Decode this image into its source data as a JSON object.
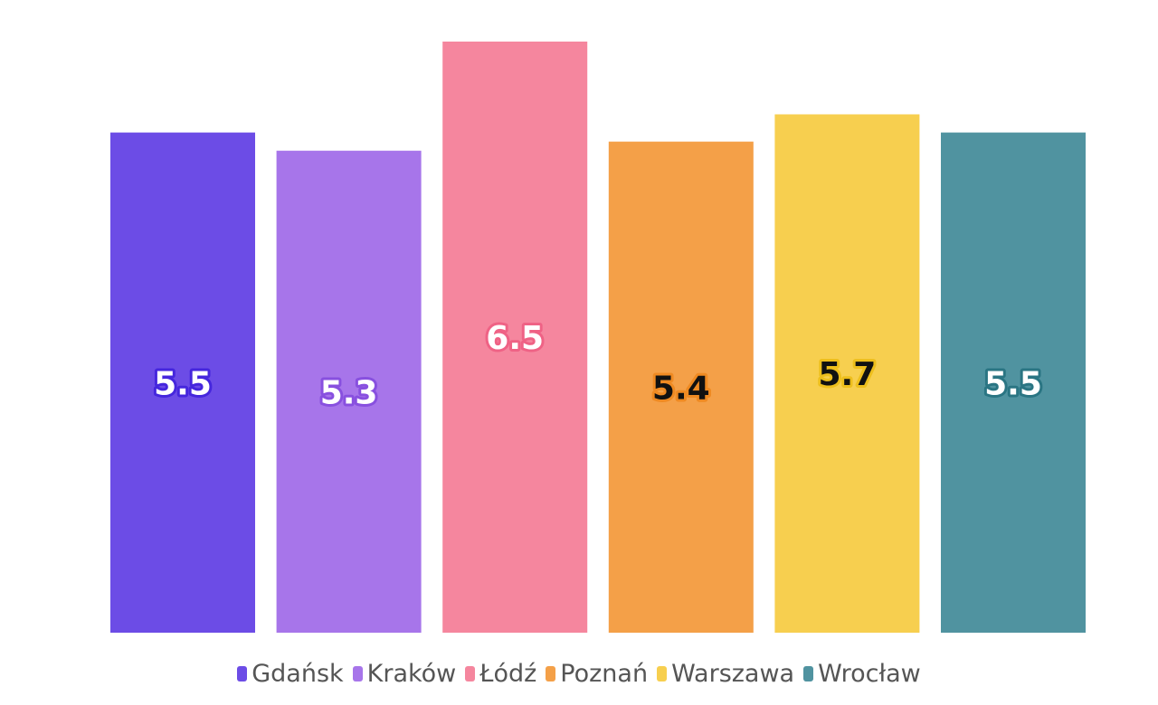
{
  "chart_data": {
    "type": "bar",
    "title": "",
    "xlabel": "",
    "ylabel": "",
    "categories": [
      "Gdańsk",
      "Kraków",
      "Łódź",
      "Poznań",
      "Warszawa",
      "Wrocław"
    ],
    "values": [
      5.5,
      5.3,
      6.5,
      5.4,
      5.7,
      5.5
    ],
    "data_labels": [
      "5.5",
      "5.3",
      "6.5",
      "5.4",
      "5.7",
      "5.5"
    ],
    "ylim": [
      0,
      6.5
    ],
    "grid": false,
    "legend_position": "bottom",
    "colors": [
      "#6c4ce6",
      "#a775ea",
      "#f5869e",
      "#f4a048",
      "#f7cf4f",
      "#5093a0"
    ],
    "label_text_colors": [
      "#ffffff",
      "#ffffff",
      "#ffffff",
      "#111111",
      "#111111",
      "#ffffff"
    ],
    "label_outline_colors": [
      "#4526dd",
      "#8850df",
      "#ef6285",
      "#ef8a22",
      "#eebf1c",
      "#2a7583"
    ]
  }
}
